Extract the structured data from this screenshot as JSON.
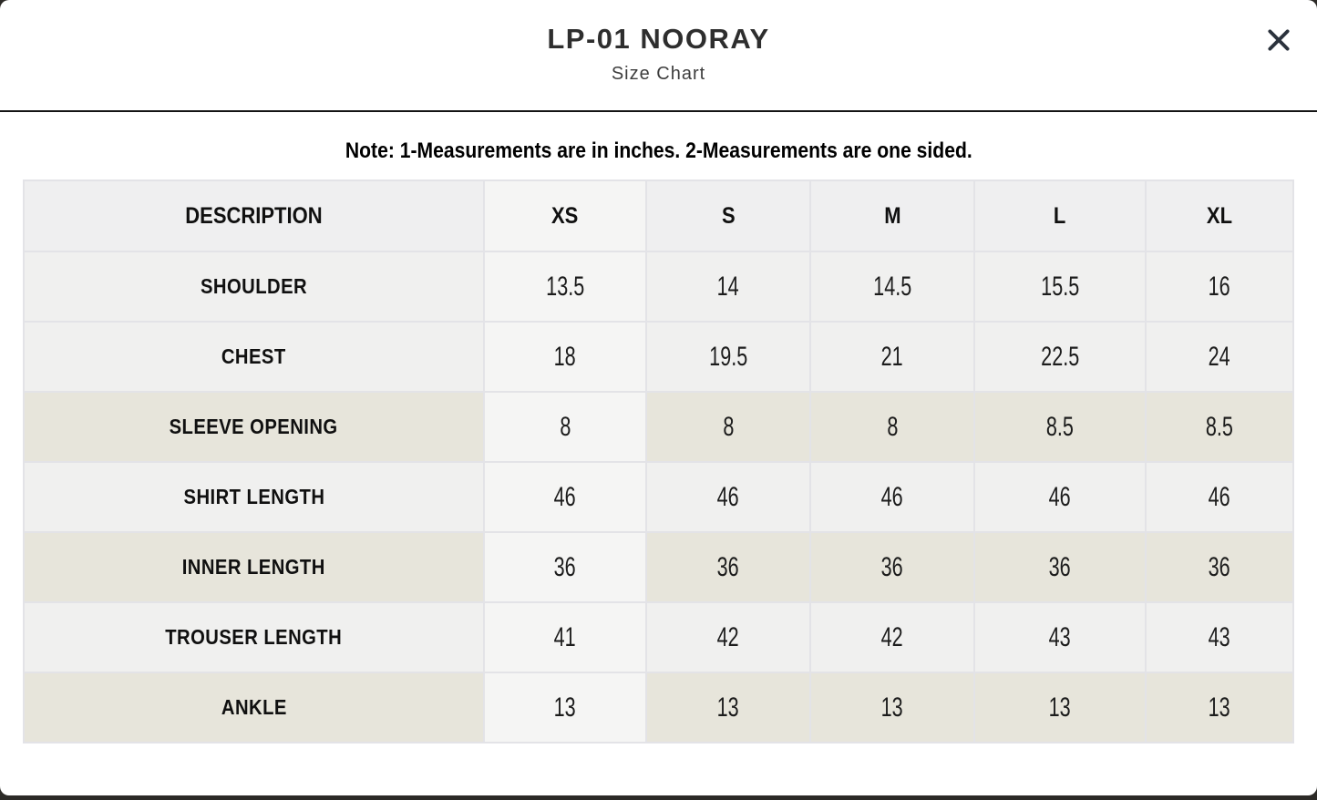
{
  "modal": {
    "title": "LP-01 NOORAY",
    "subtitle": "Size Chart"
  },
  "note": "Note: 1-Measurements are in inches. 2-Measurements are one sided.",
  "table": {
    "columns": [
      "DESCRIPTION",
      "XS",
      "S",
      "M",
      "L",
      "XL"
    ],
    "rows": [
      {
        "label": "SHOULDER",
        "values": [
          "13.5",
          "14",
          "14.5",
          "15.5",
          "16"
        ],
        "variant": "gray"
      },
      {
        "label": "CHEST",
        "values": [
          "18",
          "19.5",
          "21",
          "22.5",
          "24"
        ],
        "variant": "gray"
      },
      {
        "label": "SLEEVE OPENING",
        "values": [
          "8",
          "8",
          "8",
          "8.5",
          "8.5"
        ],
        "variant": "beige"
      },
      {
        "label": "SHIRT LENGTH",
        "values": [
          "46",
          "46",
          "46",
          "46",
          "46"
        ],
        "variant": "gray"
      },
      {
        "label": "INNER LENGTH",
        "values": [
          "36",
          "36",
          "36",
          "36",
          "36"
        ],
        "variant": "beige"
      },
      {
        "label": "TROUSER LENGTH",
        "values": [
          "41",
          "42",
          "42",
          "43",
          "43"
        ],
        "variant": "gray"
      },
      {
        "label": "ANKLE",
        "values": [
          "13",
          "13",
          "13",
          "13",
          "13"
        ],
        "variant": "beige"
      }
    ]
  },
  "colors": {
    "backdrop": "#2c2a27",
    "header_bg": "#efeff0",
    "row_gray": "#f0f0ef",
    "row_beige": "#e7e5db",
    "xs_col": "#f5f5f4",
    "border": "#e3e3e7",
    "divider": "#141414",
    "close_icon": "#2b323c",
    "title_text": "#2e2e2e"
  }
}
